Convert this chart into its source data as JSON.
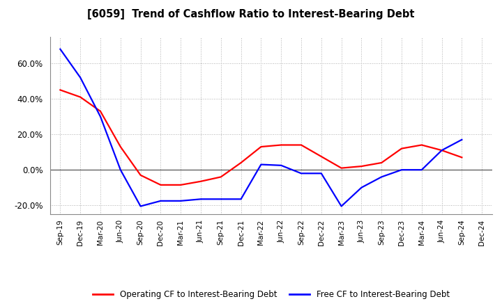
{
  "title": "[6059]  Trend of Cashflow Ratio to Interest-Bearing Debt",
  "x_labels": [
    "Sep-19",
    "Dec-19",
    "Mar-20",
    "Jun-20",
    "Sep-20",
    "Dec-20",
    "Mar-21",
    "Jun-21",
    "Sep-21",
    "Dec-21",
    "Mar-22",
    "Jun-22",
    "Sep-22",
    "Dec-22",
    "Mar-23",
    "Jun-23",
    "Sep-23",
    "Dec-23",
    "Mar-24",
    "Jun-24",
    "Sep-24",
    "Dec-24"
  ],
  "operating_cf": [
    0.45,
    0.41,
    0.33,
    0.13,
    -0.03,
    -0.085,
    -0.085,
    -0.065,
    -0.04,
    0.04,
    0.13,
    0.14,
    0.14,
    0.075,
    0.01,
    0.02,
    0.04,
    0.12,
    0.14,
    0.11,
    0.07,
    null
  ],
  "free_cf": [
    0.68,
    0.52,
    0.3,
    0.0,
    -0.205,
    -0.175,
    -0.175,
    -0.165,
    -0.165,
    -0.165,
    0.03,
    0.025,
    -0.02,
    -0.02,
    -0.205,
    -0.1,
    -0.04,
    0.0,
    0.0,
    0.11,
    0.17,
    null
  ],
  "operating_color": "#ff0000",
  "free_color": "#0000ff",
  "ylim_min": -0.25,
  "ylim_max": 0.75,
  "yticks": [
    -0.2,
    0.0,
    0.2,
    0.4,
    0.6
  ],
  "background_color": "#ffffff",
  "grid_color": "#b0b0b0",
  "legend_op": "Operating CF to Interest-Bearing Debt",
  "legend_free": "Free CF to Interest-Bearing Debt"
}
